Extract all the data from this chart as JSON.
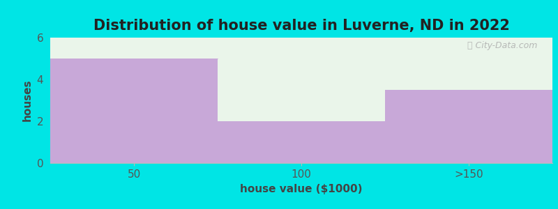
{
  "title": "Distribution of house value in Luverne, ND in 2022",
  "xlabel": "house value ($1000)",
  "ylabel": "houses",
  "categories": [
    "50",
    "100",
    ">150"
  ],
  "values": [
    5,
    2,
    3.5
  ],
  "bar_color": "#c8a8d8",
  "plot_bg_color": "#eaf5ea",
  "figure_bg_color": "#00e5e5",
  "ylim": [
    0,
    6
  ],
  "yticks": [
    0,
    2,
    4,
    6
  ],
  "title_fontsize": 15,
  "label_fontsize": 11,
  "tick_fontsize": 11,
  "watermark": "City-Data.com",
  "bar_edges": [
    0,
    1,
    2,
    3
  ],
  "xtick_positions": [
    0.5,
    1.5,
    2.5
  ],
  "xlim": [
    0,
    3
  ]
}
